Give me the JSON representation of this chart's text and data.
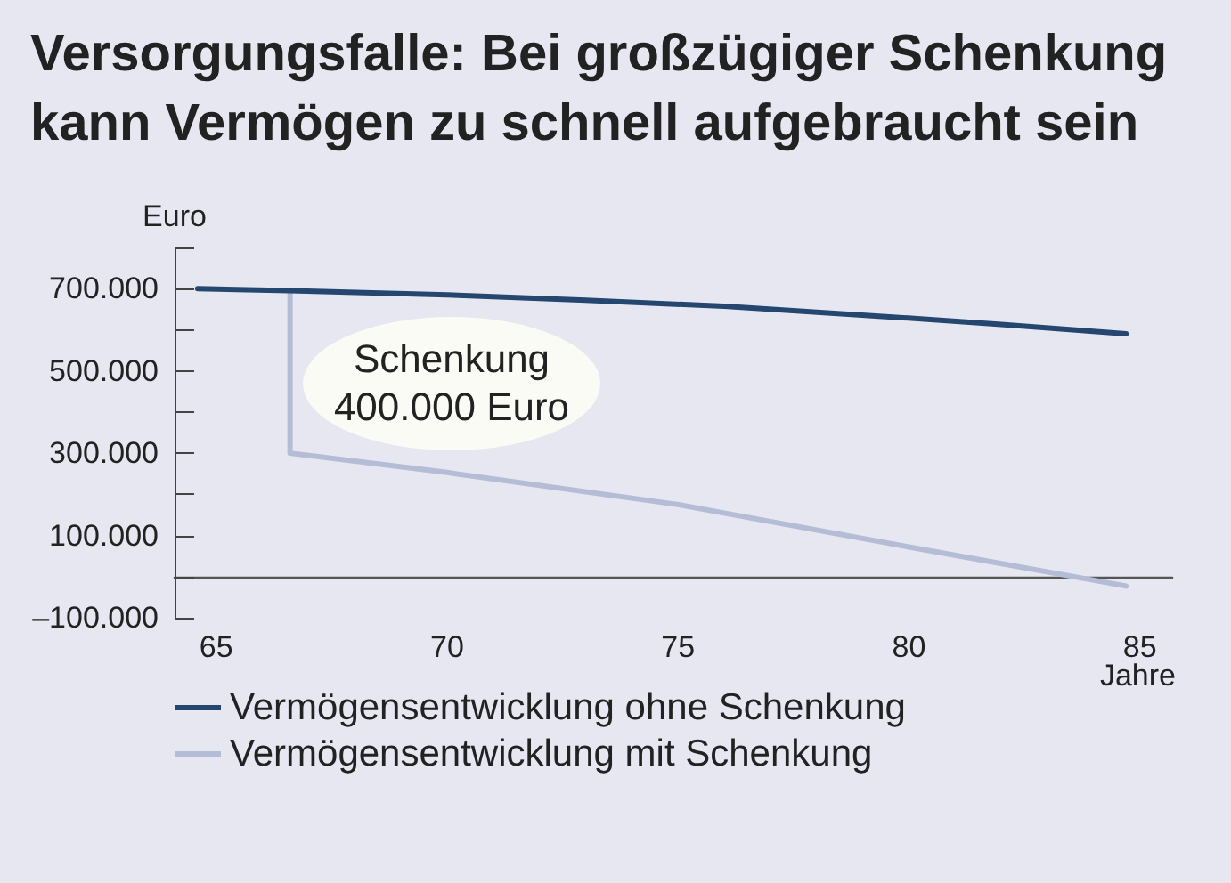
{
  "chart_data": {
    "type": "line",
    "title": "Versorgungsfalle: Bei großzügiger Schenkung kann Vermögen zu schnell aufgebraucht sein",
    "xlabel": "Jahre",
    "ylabel": "Euro",
    "annotations": [
      "Schenkung 400.000 Euro"
    ],
    "series": [
      {
        "name": "Vermögensentwicklung ohne Schenkung",
        "color": "#24466f",
        "x": [
          64.6,
          66.6,
          70,
          73,
          76,
          79.5,
          82,
          84.7
        ],
        "values": [
          700000,
          695000,
          685000,
          672000,
          657000,
          632000,
          613000,
          590000
        ]
      },
      {
        "name": "Vermögensentwicklung mit Schenkung",
        "color": "#b5bcd5",
        "x": [
          66.6,
          66.6,
          70,
          75,
          80,
          84.7
        ],
        "values": [
          695000,
          300000,
          253000,
          175000,
          72000,
          -23000
        ]
      }
    ],
    "xlim": [
      64.1,
      85.7
    ],
    "xticks": [
      65,
      70,
      75,
      80,
      85
    ],
    "ylim": [
      -100000,
      800000
    ],
    "yticks": [
      {
        "value": -100000,
        "label": "–100.000"
      },
      {
        "value": 0,
        "label": null
      },
      {
        "value": 100000,
        "label": "100.000"
      },
      {
        "value": 200000,
        "label": null
      },
      {
        "value": 300000,
        "label": "300.000"
      },
      {
        "value": 400000,
        "label": null
      },
      {
        "value": 500000,
        "label": "500.000"
      },
      {
        "value": 600000,
        "label": null
      },
      {
        "value": 700000,
        "label": "700.000"
      },
      {
        "value": 800000,
        "label": null
      }
    ],
    "grid": false,
    "legend": "bottom left",
    "marker": "none",
    "line_style": "solid"
  }
}
